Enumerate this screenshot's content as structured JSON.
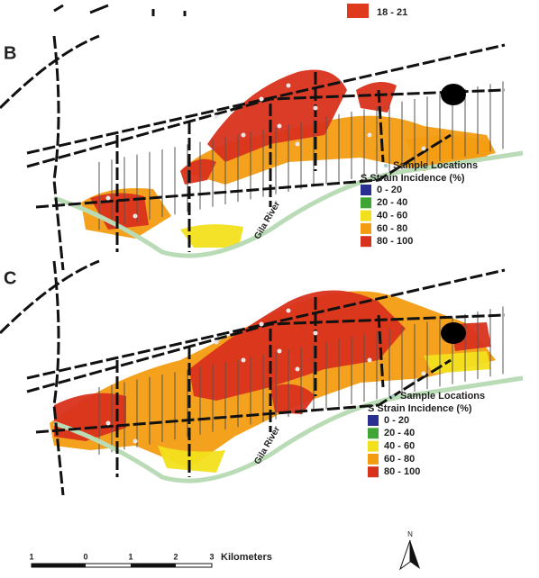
{
  "top_legend": {
    "label": "18 - 21",
    "color": "#e03a1e"
  },
  "panels": [
    {
      "label": "B",
      "river_label": "Gila River",
      "legend": {
        "title": "Sample Locations",
        "subtitle": "S Strain Incidence (%)",
        "items": [
          {
            "label": "0 - 20",
            "color": "#2b2f8f"
          },
          {
            "label": "20 - 40",
            "color": "#3fa535"
          },
          {
            "label": "40 - 60",
            "color": "#f2e01c"
          },
          {
            "label": "60 - 80",
            "color": "#f39c12"
          },
          {
            "label": "80 - 100",
            "color": "#d9321c"
          }
        ]
      }
    },
    {
      "label": "C",
      "river_label": "Gila River",
      "legend": {
        "title": "Sample Locations",
        "subtitle": "S Strain Incidence (%)",
        "items": [
          {
            "label": "0 - 20",
            "color": "#2b2f8f"
          },
          {
            "label": "20 - 40",
            "color": "#3fa535"
          },
          {
            "label": "40 - 60",
            "color": "#f2e01c"
          },
          {
            "label": "60 - 80",
            "color": "#f39c12"
          },
          {
            "label": "80 - 100",
            "color": "#d9321c"
          }
        ]
      }
    }
  ],
  "scale_bar": {
    "ticks": [
      "1",
      "0",
      "1",
      "2",
      "3"
    ],
    "unit": "Kilometers"
  },
  "north_arrow": "N"
}
